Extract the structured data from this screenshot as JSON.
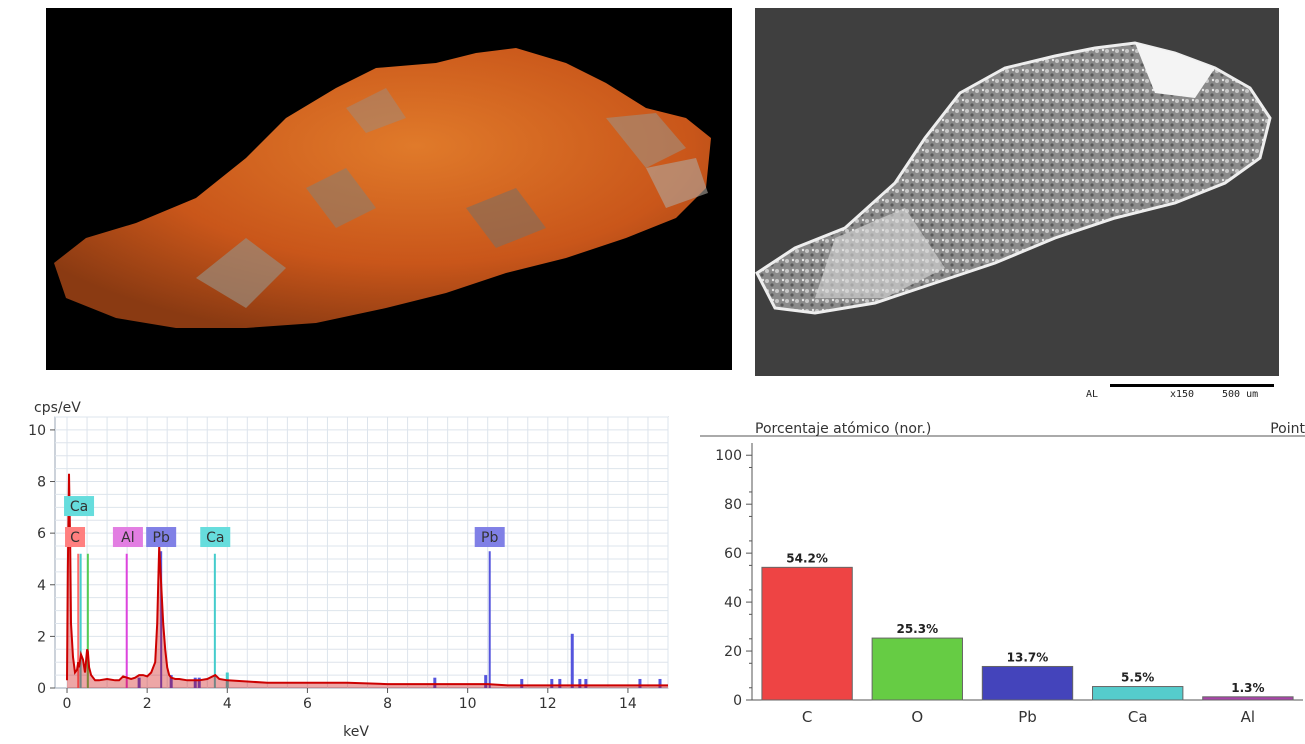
{
  "figure": {
    "sem_scale": {
      "detector": "AL",
      "magnification": "x150",
      "scale_bar": "500 um"
    }
  },
  "chart_data": [
    {
      "type": "line",
      "ylabel": "cps/eV",
      "xlabel": "keV",
      "xlim": [
        -0.3,
        15
      ],
      "ylim": [
        0,
        10.5
      ],
      "x_ticks": [
        0,
        2,
        4,
        6,
        8,
        10,
        12,
        14
      ],
      "y_ticks": [
        0,
        2,
        4,
        6,
        8,
        10
      ],
      "grid": true,
      "series": [
        {
          "color": "#cc0000",
          "x": [
            0.0,
            0.02,
            0.05,
            0.08,
            0.1,
            0.15,
            0.2,
            0.25,
            0.28,
            0.3,
            0.35,
            0.4,
            0.45,
            0.5,
            0.52,
            0.55,
            0.6,
            0.7,
            0.8,
            1.0,
            1.2,
            1.3,
            1.4,
            1.5,
            1.6,
            1.7,
            1.8,
            1.9,
            2.0,
            2.1,
            2.2,
            2.25,
            2.3,
            2.35,
            2.4,
            2.45,
            2.5,
            2.55,
            2.6,
            2.7,
            2.8,
            3.0,
            3.3,
            3.5,
            3.7,
            3.8,
            4.0,
            4.5,
            5.0,
            6.0,
            7.0,
            8.0,
            9.0,
            10.0,
            10.5,
            11.0,
            12.0,
            13.0,
            14.0,
            15.0
          ],
          "y": [
            0.3,
            4.5,
            8.3,
            5.5,
            2.5,
            1.2,
            0.6,
            0.7,
            1.0,
            0.8,
            1.3,
            1.1,
            0.6,
            1.5,
            1.4,
            0.8,
            0.5,
            0.3,
            0.3,
            0.35,
            0.3,
            0.3,
            0.45,
            0.4,
            0.35,
            0.4,
            0.5,
            0.5,
            0.45,
            0.6,
            1.0,
            2.5,
            5.5,
            4.0,
            2.5,
            1.5,
            0.8,
            0.5,
            0.4,
            0.35,
            0.35,
            0.3,
            0.3,
            0.35,
            0.5,
            0.35,
            0.3,
            0.25,
            0.2,
            0.2,
            0.2,
            0.15,
            0.15,
            0.15,
            0.15,
            0.1,
            0.1,
            0.1,
            0.1,
            0.1
          ]
        }
      ],
      "peaks": [
        {
          "element": "C",
          "x": 0.28,
          "y": 5.2,
          "color": "#ff6b6b"
        },
        {
          "element": "O",
          "x": 0.52,
          "y": 5.2,
          "color": "#55cc55"
        },
        {
          "element": "Ca",
          "x": 0.34,
          "y": 5.2,
          "color": "#44cccc"
        },
        {
          "element": "Al",
          "x": 1.49,
          "y": 5.2,
          "color": "#dd44dd"
        },
        {
          "element": "Pb",
          "x": 2.35,
          "y": 5.3,
          "color": "#5555dd"
        },
        {
          "element": "Ca",
          "x": 3.69,
          "y": 5.2,
          "color": "#44cccc"
        },
        {
          "element": "Pb",
          "x": 10.55,
          "y": 5.3,
          "color": "#5555dd"
        }
      ],
      "minor_lines": [
        {
          "x": 1.8,
          "y": 0.4,
          "color": "#5555dd"
        },
        {
          "x": 2.6,
          "y": 0.5,
          "color": "#5555dd"
        },
        {
          "x": 3.2,
          "y": 0.4,
          "color": "#5555dd"
        },
        {
          "x": 3.3,
          "y": 0.4,
          "color": "#5555dd"
        },
        {
          "x": 4.0,
          "y": 0.6,
          "color": "#44cccc"
        },
        {
          "x": 9.18,
          "y": 0.4,
          "color": "#5555dd"
        },
        {
          "x": 10.45,
          "y": 0.5,
          "color": "#5555dd"
        },
        {
          "x": 11.35,
          "y": 0.35,
          "color": "#5555dd"
        },
        {
          "x": 12.1,
          "y": 0.35,
          "color": "#5555dd"
        },
        {
          "x": 12.3,
          "y": 0.35,
          "color": "#5555dd"
        },
        {
          "x": 12.61,
          "y": 2.1,
          "color": "#5555dd"
        },
        {
          "x": 12.8,
          "y": 0.35,
          "color": "#5555dd"
        },
        {
          "x": 12.95,
          "y": 0.35,
          "color": "#5555dd"
        },
        {
          "x": 14.3,
          "y": 0.35,
          "color": "#5555dd"
        },
        {
          "x": 14.8,
          "y": 0.35,
          "color": "#5555dd"
        }
      ],
      "labels": [
        {
          "text": "Ca",
          "x": 0.3,
          "y": 7.05,
          "color": "#66dddd"
        },
        {
          "text": "C",
          "x": 0.2,
          "y": 5.85,
          "color": "#ff7f7f"
        },
        {
          "text": "Al",
          "x": 1.52,
          "y": 5.85,
          "color": "#e27ee2"
        },
        {
          "text": "Pb",
          "x": 2.35,
          "y": 5.85,
          "color": "#8080e6"
        },
        {
          "text": "Ca",
          "x": 3.7,
          "y": 5.85,
          "color": "#66dddd"
        },
        {
          "text": "Pb",
          "x": 10.55,
          "y": 5.85,
          "color": "#8080e6"
        }
      ]
    },
    {
      "type": "bar",
      "title": "Porcentaje atómico (nor.)",
      "title_right": "Point",
      "categories": [
        "C",
        "O",
        "Pb",
        "Ca",
        "Al"
      ],
      "values": [
        54.2,
        25.3,
        13.7,
        5.5,
        1.3
      ],
      "value_labels": [
        "54.2%",
        "25.3%",
        "13.7%",
        "5.5%",
        "1.3%"
      ],
      "colors": [
        "#ee4444",
        "#66cc44",
        "#4444bb",
        "#55cccc",
        "#aa44aa"
      ],
      "ylim": [
        0,
        105
      ],
      "y_ticks": [
        0,
        20,
        40,
        60,
        80,
        100
      ]
    }
  ]
}
